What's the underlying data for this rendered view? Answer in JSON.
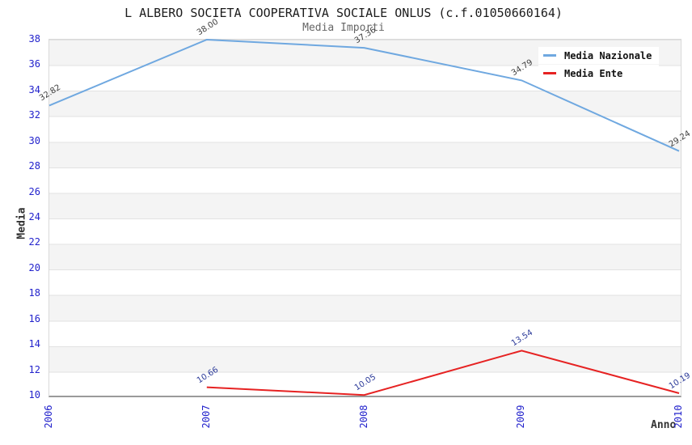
{
  "title": "L ALBERO SOCIETA COOPERATIVA SOCIALE ONLUS (c.f.01050660164)",
  "subtitle": "Media Importi",
  "axes": {
    "y_title": "Media",
    "x_title": "Anno",
    "tick_color": "#2222cc"
  },
  "legend": [
    {
      "label": "Media Nazionale",
      "color": "#6fa8e0"
    },
    {
      "label": "Media Ente",
      "color": "#e62222"
    }
  ],
  "chart_data": {
    "type": "line",
    "title": "L ALBERO SOCIETA COOPERATIVA SOCIALE ONLUS (c.f.01050660164)",
    "subtitle": "Media Importi",
    "xlabel": "Anno",
    "ylabel": "Media",
    "x_years": [
      2006,
      2007,
      2008,
      2009,
      2010
    ],
    "ylim": [
      10,
      38
    ],
    "y_ticks": [
      38,
      36,
      34,
      32,
      30,
      28,
      26,
      24,
      22,
      20,
      18,
      16,
      14,
      12,
      10
    ],
    "grid": "horizontal-bands-alternating-gray-white",
    "legend_position": "top-right",
    "series": [
      {
        "name": "Media Nazionale",
        "color": "#6fa8e0",
        "label_color": "#3d3d3d",
        "points": [
          [
            2006,
            32.82
          ],
          [
            2007,
            38.0
          ],
          [
            2008,
            37.36
          ],
          [
            2009,
            34.79
          ],
          [
            2010,
            29.24
          ]
        ]
      },
      {
        "name": "Media Ente",
        "color": "#e62222",
        "label_color": "#2b3a99",
        "points": [
          [
            2007,
            10.66
          ],
          [
            2008,
            10.05
          ],
          [
            2009,
            13.54
          ],
          [
            2010,
            10.19
          ]
        ]
      }
    ]
  }
}
